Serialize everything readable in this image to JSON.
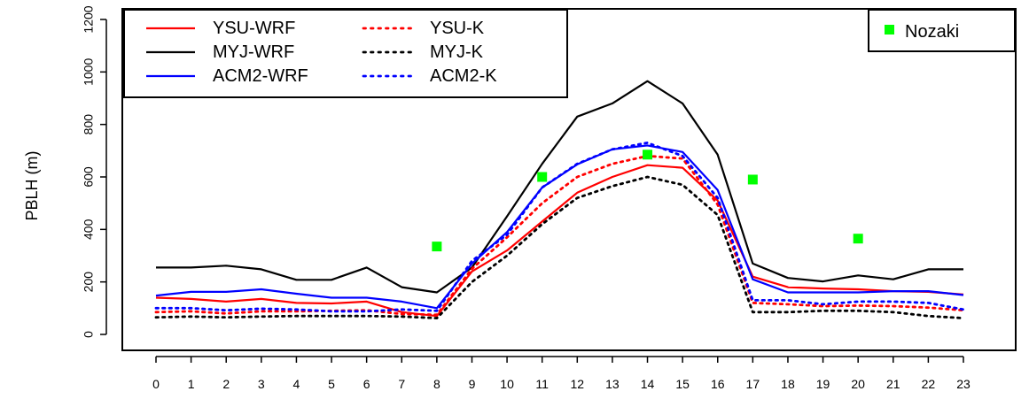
{
  "chart_data": {
    "type": "line",
    "title": "",
    "xlabel": "",
    "ylabel": "PBLH (m)",
    "x": [
      0,
      1,
      2,
      3,
      4,
      5,
      6,
      7,
      8,
      9,
      10,
      11,
      12,
      13,
      14,
      15,
      16,
      17,
      18,
      19,
      20,
      21,
      22,
      23
    ],
    "x_tick_labels": [
      "0",
      "1",
      "2",
      "3",
      "4",
      "5",
      "6",
      "7",
      "8",
      "9",
      "10",
      "11",
      "12",
      "13",
      "14",
      "15",
      "16",
      "17",
      "18",
      "19",
      "20",
      "21",
      "22",
      "23"
    ],
    "y_ticks": [
      0,
      200,
      400,
      600,
      800,
      1000,
      1200
    ],
    "y_tick_labels": [
      "0",
      "200",
      "400",
      "600",
      "800",
      "1000",
      "1200"
    ],
    "ylim": [
      0,
      1200
    ],
    "xlim": [
      0,
      23
    ],
    "grid": false,
    "legend_position": "top-left",
    "series": [
      {
        "name": "YSU-WRF",
        "style": "solid",
        "color": "#ff0000",
        "values": [
          140,
          135,
          125,
          135,
          120,
          118,
          125,
          85,
          70,
          240,
          320,
          430,
          540,
          600,
          645,
          635,
          510,
          220,
          180,
          175,
          172,
          165,
          162,
          152
        ]
      },
      {
        "name": "MYJ-WRF",
        "style": "solid",
        "color": "#000000",
        "values": [
          255,
          255,
          262,
          248,
          208,
          208,
          255,
          180,
          160,
          255,
          450,
          650,
          830,
          880,
          965,
          880,
          685,
          270,
          215,
          202,
          225,
          210,
          248,
          248
        ]
      },
      {
        "name": "ACM2-WRF",
        "style": "solid",
        "color": "#0000ff",
        "values": [
          148,
          162,
          162,
          172,
          155,
          140,
          140,
          125,
          100,
          270,
          390,
          560,
          648,
          705,
          720,
          695,
          550,
          210,
          160,
          160,
          160,
          165,
          165,
          150
        ]
      },
      {
        "name": "YSU-K",
        "style": "dotted",
        "color": "#ff0000",
        "values": [
          85,
          88,
          80,
          88,
          88,
          90,
          92,
          78,
          75,
          250,
          370,
          500,
          600,
          650,
          680,
          670,
          495,
          120,
          115,
          108,
          110,
          108,
          102,
          92
        ]
      },
      {
        "name": "MYJ-K",
        "style": "dotted",
        "color": "#000000",
        "values": [
          65,
          68,
          65,
          68,
          70,
          70,
          70,
          68,
          62,
          200,
          300,
          420,
          520,
          565,
          600,
          570,
          455,
          85,
          85,
          90,
          90,
          85,
          70,
          62
        ]
      },
      {
        "name": "ACM2-K",
        "style": "dotted",
        "color": "#0000ff",
        "values": [
          100,
          100,
          92,
          98,
          95,
          88,
          88,
          95,
          90,
          280,
          380,
          560,
          650,
          705,
          730,
          680,
          520,
          130,
          130,
          115,
          125,
          125,
          120,
          95
        ]
      }
    ],
    "observations": {
      "name": "Nozaki",
      "color": "#00ff00",
      "marker": "square",
      "x": [
        8,
        11,
        14,
        17,
        20
      ],
      "values": [
        335,
        600,
        685,
        590,
        365
      ]
    },
    "legend_right": {
      "label": "Nozaki"
    },
    "legend_left": {
      "entries": [
        "YSU-WRF",
        "MYJ-WRF",
        "ACM2-WRF",
        "YSU-K",
        "MYJ-K",
        "ACM2-K"
      ]
    }
  }
}
